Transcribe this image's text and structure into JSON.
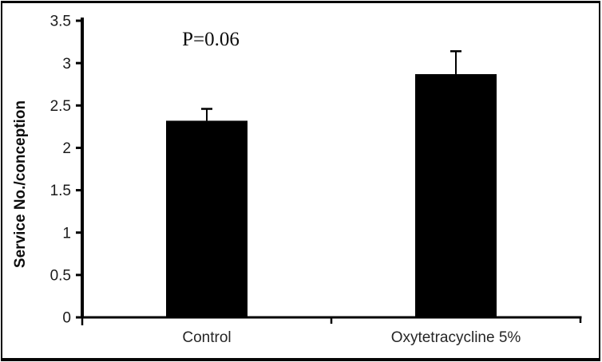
{
  "chart_data": {
    "type": "bar",
    "categories": [
      "Control",
      "Oxytetracycline 5%"
    ],
    "values": [
      2.32,
      2.87
    ],
    "error_plus": [
      0.14,
      0.27
    ],
    "annotation": "P=0.06",
    "title": "",
    "xlabel": "",
    "ylabel": "Service No./conception",
    "ylim": [
      0,
      3.5
    ],
    "yticks": [
      0,
      0.5,
      1,
      1.5,
      2,
      2.5,
      3,
      3.5
    ],
    "ytick_labels": [
      "0",
      "0.5",
      "1",
      "1.5",
      "2",
      "2.5",
      "3",
      "3.5"
    ],
    "grid": false,
    "legend": null,
    "colors": {
      "bar": "#000000",
      "axis": "#000000",
      "error_bar": "#000000",
      "tick_text": "#1a1a1a",
      "frame_border": "#050505",
      "background": "#ffffff"
    }
  }
}
